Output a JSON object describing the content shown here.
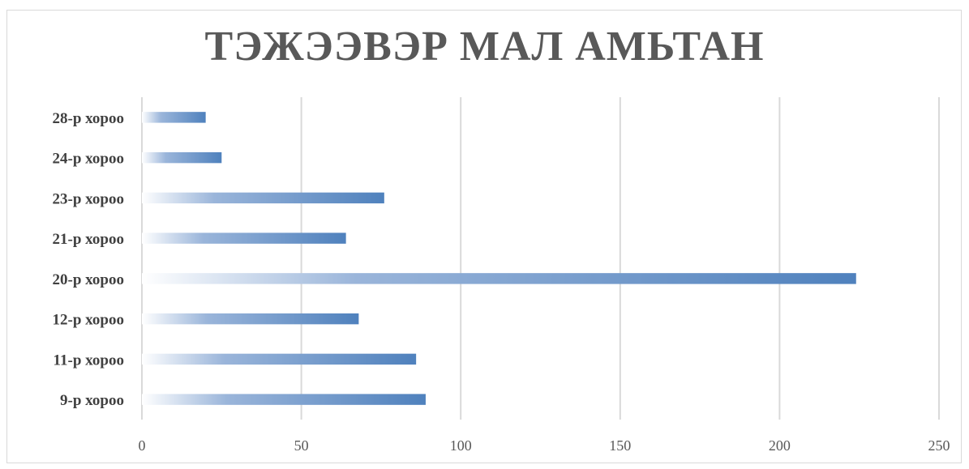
{
  "chart_data": {
    "type": "bar",
    "orientation": "horizontal",
    "title": "ТЭЖЭЭВЭР МАЛ АМЬТАН",
    "categories": [
      "28-р хороо",
      "24-р хороо",
      "23-р хороо",
      "21-р хороо",
      "20-р хороо",
      "12-р хороо",
      "11-р хороо",
      "9-р хороо"
    ],
    "values": [
      20,
      25,
      76,
      64,
      224,
      68,
      86,
      89
    ],
    "xlim": [
      0,
      250
    ],
    "xticks": [
      "0",
      "50",
      "100",
      "150",
      "200",
      "250"
    ],
    "grid": true,
    "legend": "none",
    "bar_color": "#4f81bd"
  }
}
